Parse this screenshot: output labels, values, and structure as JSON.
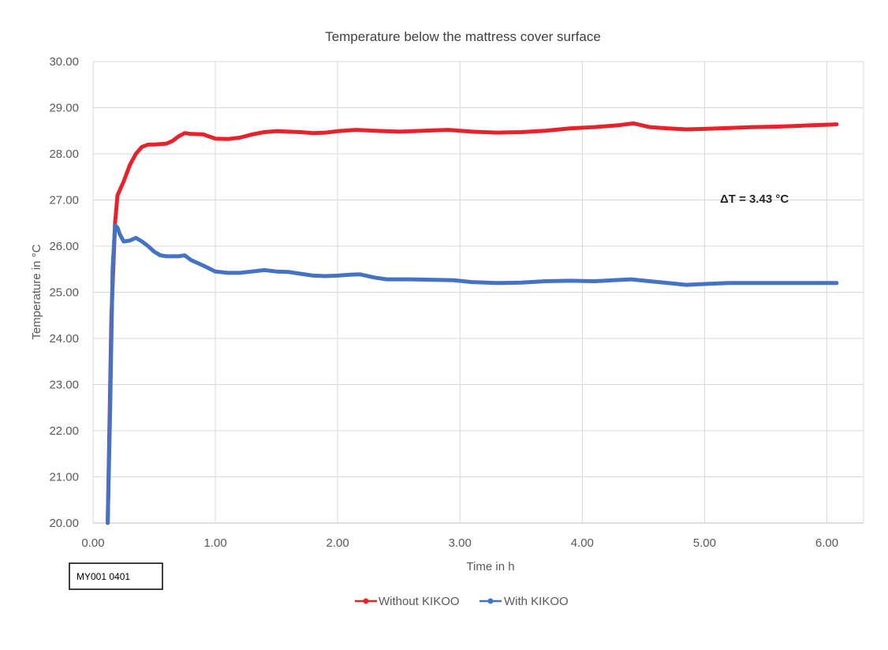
{
  "chart_data": {
    "type": "line",
    "title": "Temperature below the mattress cover surface",
    "xlabel": "Time in h",
    "ylabel": "Temperature in °C",
    "xlim": [
      0,
      6.3
    ],
    "ylim": [
      20,
      30
    ],
    "x_ticks": [
      "0.00",
      "1.00",
      "2.00",
      "3.00",
      "4.00",
      "5.00",
      "6.00"
    ],
    "x_tick_values": [
      0,
      1,
      2,
      3,
      4,
      5,
      6
    ],
    "y_ticks": [
      "20.00",
      "21.00",
      "22.00",
      "23.00",
      "24.00",
      "25.00",
      "26.00",
      "27.00",
      "28.00",
      "29.00",
      "30.00"
    ],
    "y_tick_values": [
      20,
      21,
      22,
      23,
      24,
      25,
      26,
      27,
      28,
      29,
      30
    ],
    "grid": true,
    "legend_position": "bottom",
    "annotation": "ΔT = 3.43 °C",
    "series": [
      {
        "name": "Without KIKOO",
        "color": "#e8222a",
        "points": [
          [
            0.12,
            20.0
          ],
          [
            0.15,
            24.5
          ],
          [
            0.18,
            26.5
          ],
          [
            0.2,
            27.1
          ],
          [
            0.25,
            27.4
          ],
          [
            0.3,
            27.75
          ],
          [
            0.35,
            28.0
          ],
          [
            0.4,
            28.15
          ],
          [
            0.45,
            28.2
          ],
          [
            0.5,
            28.2
          ],
          [
            0.6,
            28.22
          ],
          [
            0.65,
            28.28
          ],
          [
            0.7,
            28.38
          ],
          [
            0.75,
            28.45
          ],
          [
            0.8,
            28.43
          ],
          [
            0.9,
            28.42
          ],
          [
            1.0,
            28.33
          ],
          [
            1.1,
            28.32
          ],
          [
            1.2,
            28.35
          ],
          [
            1.3,
            28.42
          ],
          [
            1.4,
            28.47
          ],
          [
            1.5,
            28.49
          ],
          [
            1.6,
            28.48
          ],
          [
            1.7,
            28.47
          ],
          [
            1.8,
            28.45
          ],
          [
            1.9,
            28.46
          ],
          [
            2.0,
            28.49
          ],
          [
            2.15,
            28.52
          ],
          [
            2.3,
            28.5
          ],
          [
            2.5,
            28.48
          ],
          [
            2.7,
            28.5
          ],
          [
            2.9,
            28.52
          ],
          [
            3.1,
            28.48
          ],
          [
            3.3,
            28.46
          ],
          [
            3.5,
            28.47
          ],
          [
            3.7,
            28.5
          ],
          [
            3.9,
            28.55
          ],
          [
            4.1,
            28.58
          ],
          [
            4.3,
            28.62
          ],
          [
            4.42,
            28.66
          ],
          [
            4.55,
            28.58
          ],
          [
            4.7,
            28.55
          ],
          [
            4.85,
            28.53
          ],
          [
            5.0,
            28.54
          ],
          [
            5.2,
            28.56
          ],
          [
            5.4,
            28.58
          ],
          [
            5.6,
            28.59
          ],
          [
            5.8,
            28.61
          ],
          [
            6.0,
            28.63
          ],
          [
            6.08,
            28.64
          ]
        ]
      },
      {
        "name": "With KIKOO",
        "color": "#4472c4",
        "points": [
          [
            0.12,
            20.0
          ],
          [
            0.14,
            22.5
          ],
          [
            0.16,
            25.5
          ],
          [
            0.18,
            26.45
          ],
          [
            0.2,
            26.4
          ],
          [
            0.22,
            26.25
          ],
          [
            0.25,
            26.1
          ],
          [
            0.3,
            26.12
          ],
          [
            0.35,
            26.18
          ],
          [
            0.4,
            26.1
          ],
          [
            0.45,
            26.0
          ],
          [
            0.5,
            25.88
          ],
          [
            0.55,
            25.8
          ],
          [
            0.6,
            25.78
          ],
          [
            0.7,
            25.78
          ],
          [
            0.75,
            25.8
          ],
          [
            0.8,
            25.7
          ],
          [
            0.9,
            25.58
          ],
          [
            1.0,
            25.45
          ],
          [
            1.1,
            25.42
          ],
          [
            1.2,
            25.42
          ],
          [
            1.3,
            25.45
          ],
          [
            1.4,
            25.48
          ],
          [
            1.5,
            25.45
          ],
          [
            1.6,
            25.44
          ],
          [
            1.7,
            25.4
          ],
          [
            1.8,
            25.36
          ],
          [
            1.9,
            25.35
          ],
          [
            2.0,
            25.36
          ],
          [
            2.1,
            25.38
          ],
          [
            2.18,
            25.39
          ],
          [
            2.3,
            25.32
          ],
          [
            2.4,
            25.28
          ],
          [
            2.6,
            25.28
          ],
          [
            2.8,
            25.27
          ],
          [
            2.95,
            25.26
          ],
          [
            3.1,
            25.22
          ],
          [
            3.3,
            25.2
          ],
          [
            3.5,
            25.21
          ],
          [
            3.7,
            25.24
          ],
          [
            3.9,
            25.25
          ],
          [
            4.1,
            25.24
          ],
          [
            4.25,
            25.26
          ],
          [
            4.4,
            25.28
          ],
          [
            4.55,
            25.24
          ],
          [
            4.7,
            25.2
          ],
          [
            4.85,
            25.16
          ],
          [
            5.0,
            25.18
          ],
          [
            5.2,
            25.2
          ],
          [
            5.4,
            25.2
          ],
          [
            5.6,
            25.2
          ],
          [
            5.8,
            25.2
          ],
          [
            6.0,
            25.2
          ],
          [
            6.08,
            25.2
          ]
        ]
      }
    ]
  },
  "sample_label": "MY001 0401"
}
